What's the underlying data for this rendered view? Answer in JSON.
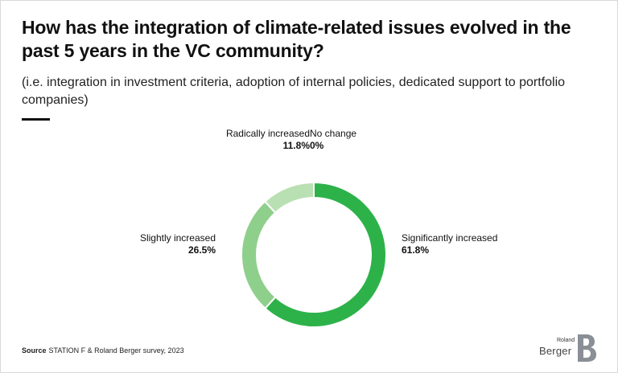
{
  "header": {
    "title": "How has the integration of climate-related issues evolved in the past 5 years in the VC community?",
    "subtitle": "(i.e. integration in investment criteria, adoption of internal policies, dedicated support to portfolio companies)"
  },
  "chart_data": {
    "type": "pie",
    "variant": "donut",
    "slices": [
      {
        "label": "Significantly increased",
        "value": 61.8,
        "display": "61.8%",
        "color": "#2db24a"
      },
      {
        "label": "Slightly increased",
        "value": 26.5,
        "display": "26.5%",
        "color": "#8fcf8c"
      },
      {
        "label": "Radically increased",
        "value": 11.8,
        "display": "11.8%",
        "color": "#b9e0b2"
      },
      {
        "label": "No change",
        "value": 0,
        "display": "0%",
        "color": "#e6f4e3"
      }
    ]
  },
  "footer": {
    "source_key": "Source",
    "source_text": "STATION F & Roland Berger survey, 2023"
  },
  "logo": {
    "top_word": "Roland",
    "main_word": "Berger",
    "mark_color": "#8a8f96"
  }
}
